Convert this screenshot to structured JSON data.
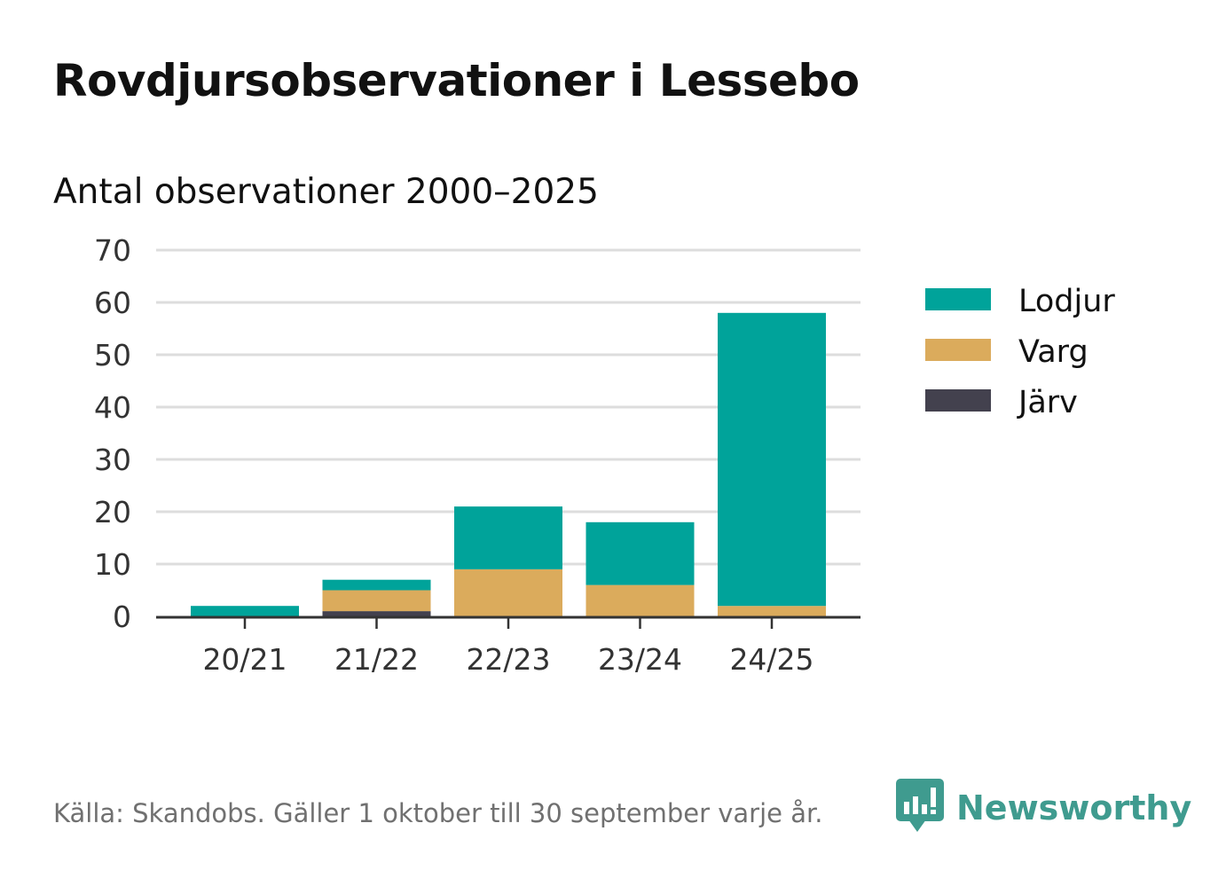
{
  "header": {
    "title": "Rovdjursobservationer i Lessebo",
    "subtitle": "Antal observationer 2000–2025"
  },
  "footer": {
    "source": "Källa: Skandobs. Gäller 1 oktober till 30 september varje år.",
    "brand": "Newsworthy",
    "brand_icon": "newsworthy-logo-icon",
    "brand_color": "#3f9b8f"
  },
  "chart_data": {
    "type": "bar",
    "stacked": true,
    "categories": [
      "20/21",
      "21/22",
      "22/23",
      "23/24",
      "24/25"
    ],
    "series": [
      {
        "name": "Järv",
        "color": "#43414e",
        "values": [
          0,
          1,
          0,
          0,
          0
        ]
      },
      {
        "name": "Varg",
        "color": "#dbab5c",
        "values": [
          0,
          4,
          9,
          6,
          2
        ]
      },
      {
        "name": "Lodjur",
        "color": "#00a39a",
        "values": [
          2,
          2,
          12,
          12,
          56
        ]
      }
    ],
    "legend_order": [
      "Lodjur",
      "Varg",
      "Järv"
    ],
    "legend_position": "right",
    "ylim": [
      0,
      70
    ],
    "yticks": [
      0,
      10,
      20,
      30,
      40,
      50,
      60,
      70
    ],
    "grid": true,
    "xlabel": "",
    "ylabel": ""
  }
}
